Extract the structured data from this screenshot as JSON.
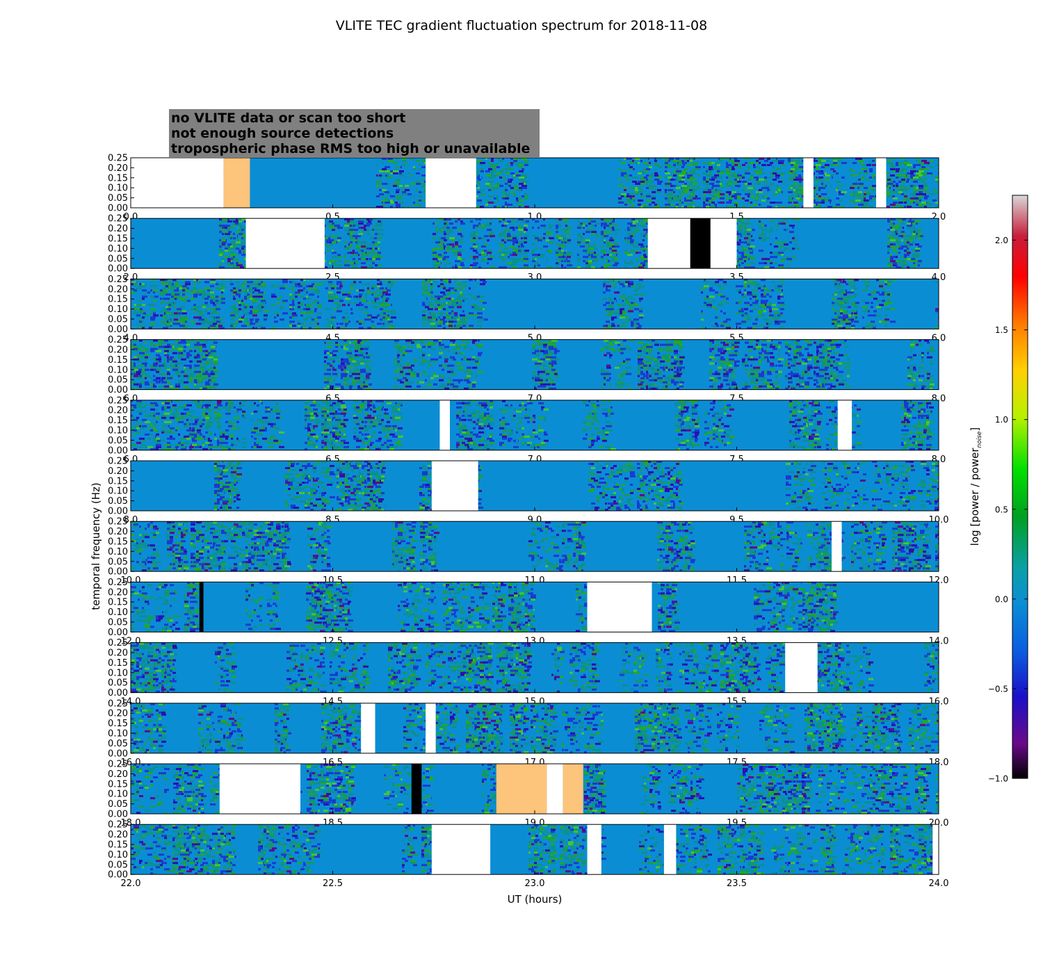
{
  "chart_data": {
    "type": "heatmap",
    "title": "VLITE TEC gradient fluctuation spectrum for 2018-11-08",
    "xlabel": "UT (hours)",
    "ylabel": "temporal frequency (Hz)",
    "ylim": [
      0,
      0.25
    ],
    "yticks": [
      "0.00",
      "0.05",
      "0.10",
      "0.15",
      "0.20",
      "0.25"
    ],
    "colorbar": {
      "label_main": "log [power / power",
      "label_sub": "noise",
      "label_close": "]",
      "vmin": -1.0,
      "vmax": 2.25,
      "ticks": [
        "2.0",
        "1.5",
        "1.0",
        "0.5",
        "0.0",
        "−0.5",
        "−1.0"
      ],
      "tick_values": [
        2.0,
        1.5,
        1.0,
        0.5,
        0.0,
        -0.5,
        -1.0
      ]
    },
    "legend": [
      {
        "text": "no VLITE data or scan too short",
        "color": "#ffffff"
      },
      {
        "text": "not enough source detections",
        "color": "#000000"
      },
      {
        "text": "tropospheric phase RMS too high or unavailable",
        "color": "#fdc47b"
      }
    ],
    "flag_colors": {
      "no_data": "#ffffff",
      "no_detections": "#000000",
      "tropo": "#fdc47b",
      "baseline": "#0b8dd4"
    },
    "panels": [
      {
        "range": [
          0,
          2
        ],
        "xticks": [
          "0.0",
          "0.5",
          "1.0",
          "1.5",
          "2.0"
        ],
        "no_data": [
          [
            0.0,
            0.23
          ],
          [
            0.73,
            0.855
          ],
          [
            1.665,
            1.69
          ],
          [
            1.845,
            1.87
          ]
        ],
        "no_detections": [],
        "tropo": [
          [
            0.23,
            0.295
          ]
        ]
      },
      {
        "range": [
          2,
          4
        ],
        "xticks": [
          "2.0",
          "2.5",
          "3.0",
          "3.5",
          "4.0"
        ],
        "no_data": [
          [
            2.285,
            2.48
          ],
          [
            3.28,
            3.5
          ]
        ],
        "no_detections": [
          [
            3.385,
            3.435
          ]
        ],
        "tropo": []
      },
      {
        "range": [
          4,
          6
        ],
        "xticks": [
          "4.0",
          "4.5",
          "5.0",
          "5.5",
          "6.0"
        ],
        "no_data": [],
        "no_detections": [],
        "tropo": []
      },
      {
        "range": [
          6,
          8
        ],
        "xticks": [
          "6.0",
          "6.5",
          "7.0",
          "7.5",
          "8.0"
        ],
        "no_data": [],
        "no_detections": [],
        "tropo": []
      },
      {
        "range": [
          6,
          8
        ],
        "xticks": [
          "6.0",
          "6.5",
          "7.0",
          "7.5",
          "8.0"
        ],
        "no_data": [
          [
            6.765,
            6.79
          ],
          [
            7.75,
            7.785
          ]
        ],
        "no_detections": [],
        "tropo": []
      },
      {
        "range": [
          8,
          10
        ],
        "xticks": [
          "8.0",
          "8.5",
          "9.0",
          "9.5",
          "10.0"
        ],
        "no_data": [
          [
            8.745,
            8.86
          ]
        ],
        "no_detections": [],
        "tropo": []
      },
      {
        "range": [
          10,
          12
        ],
        "xticks": [
          "10.0",
          "10.5",
          "11.0",
          "11.5",
          "12.0"
        ],
        "no_data": [
          [
            11.735,
            11.76
          ]
        ],
        "no_detections": [],
        "tropo": []
      },
      {
        "range": [
          12,
          14
        ],
        "xticks": [
          "12.0",
          "12.5",
          "13.0",
          "13.5",
          "14.0"
        ],
        "no_data": [
          [
            13.13,
            13.29
          ]
        ],
        "no_detections": [
          [
            12.17,
            12.18
          ]
        ],
        "tropo": []
      },
      {
        "range": [
          14,
          16
        ],
        "xticks": [
          "14.0",
          "14.5",
          "15.0",
          "15.5",
          "16.0"
        ],
        "no_data": [
          [
            15.62,
            15.7
          ]
        ],
        "no_detections": [],
        "tropo": []
      },
      {
        "range": [
          16,
          18
        ],
        "xticks": [
          "16.0",
          "16.5",
          "17.0",
          "17.5",
          "18.0"
        ],
        "no_data": [
          [
            16.57,
            16.605
          ],
          [
            16.73,
            16.755
          ]
        ],
        "no_detections": [],
        "tropo": []
      },
      {
        "range": [
          18,
          20
        ],
        "xticks": [
          "18.0",
          "18.5",
          "19.0",
          "19.5",
          "20.0"
        ],
        "no_data": [
          [
            18.22,
            18.42
          ],
          [
            19.03,
            19.07
          ]
        ],
        "no_detections": [
          [
            18.695,
            18.72
          ]
        ],
        "tropo": [
          [
            18.905,
            19.03
          ],
          [
            19.07,
            19.12
          ]
        ]
      },
      {
        "range": [
          22,
          24
        ],
        "xticks": [
          "22.0",
          "22.5",
          "23.0",
          "23.5",
          "24.0"
        ],
        "no_data": [
          [
            22.745,
            22.89
          ],
          [
            23.13,
            23.165
          ],
          [
            23.32,
            23.35
          ],
          [
            23.985,
            24.0
          ]
        ],
        "no_detections": [],
        "tropo": []
      }
    ]
  }
}
